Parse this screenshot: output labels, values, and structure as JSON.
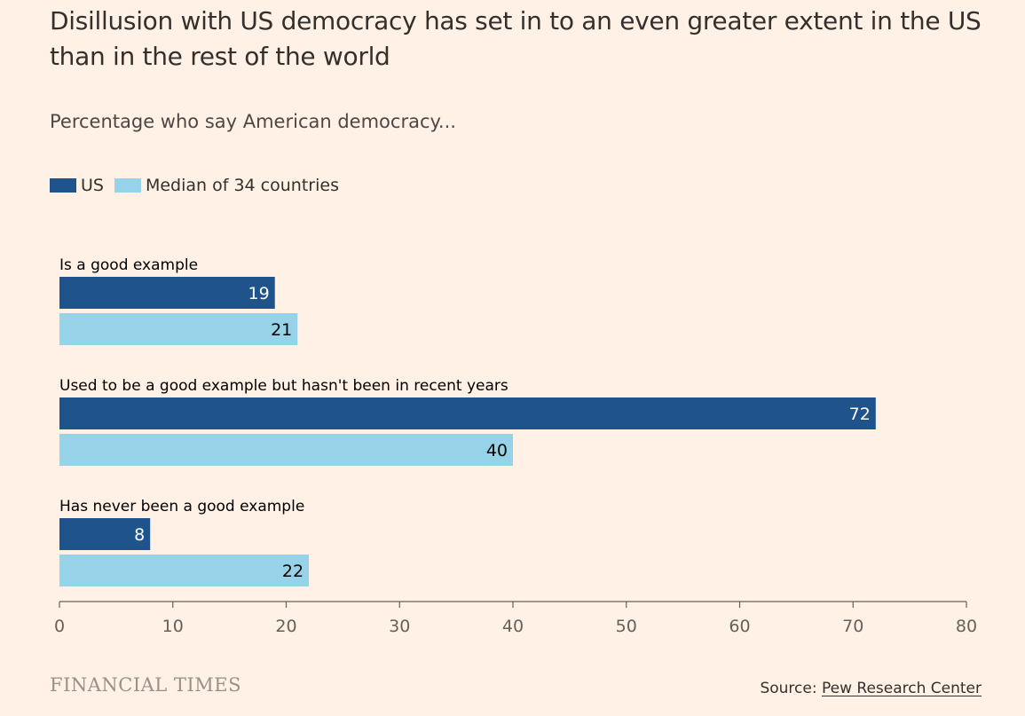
{
  "title": "Disillusion with US democracy has set in to an even greater extent in the US than in the rest of the world",
  "subtitle": "Percentage who say American democracy...",
  "brand": "FINANCIAL TIMES",
  "source": {
    "prefix": "Source: ",
    "link_text": "Pew Research Center"
  },
  "colors": {
    "background": "#fff1e5",
    "us": "#1e538b",
    "median": "#96d3e8"
  },
  "chart_data": {
    "type": "bar",
    "orientation": "horizontal",
    "categories": [
      "Is a good example",
      "Used to be a good example but hasn't been in recent years",
      "Has never been a good example"
    ],
    "series": [
      {
        "name": "US",
        "values": [
          19,
          72,
          8
        ],
        "color": "#1e538b"
      },
      {
        "name": "Median of 34 countries",
        "values": [
          21,
          40,
          22
        ],
        "color": "#96d3e8"
      }
    ],
    "xlim": [
      0,
      80
    ],
    "xticks": [
      0,
      10,
      20,
      30,
      40,
      50,
      60,
      70,
      80
    ],
    "grid": false,
    "legend_position": "top-left"
  }
}
